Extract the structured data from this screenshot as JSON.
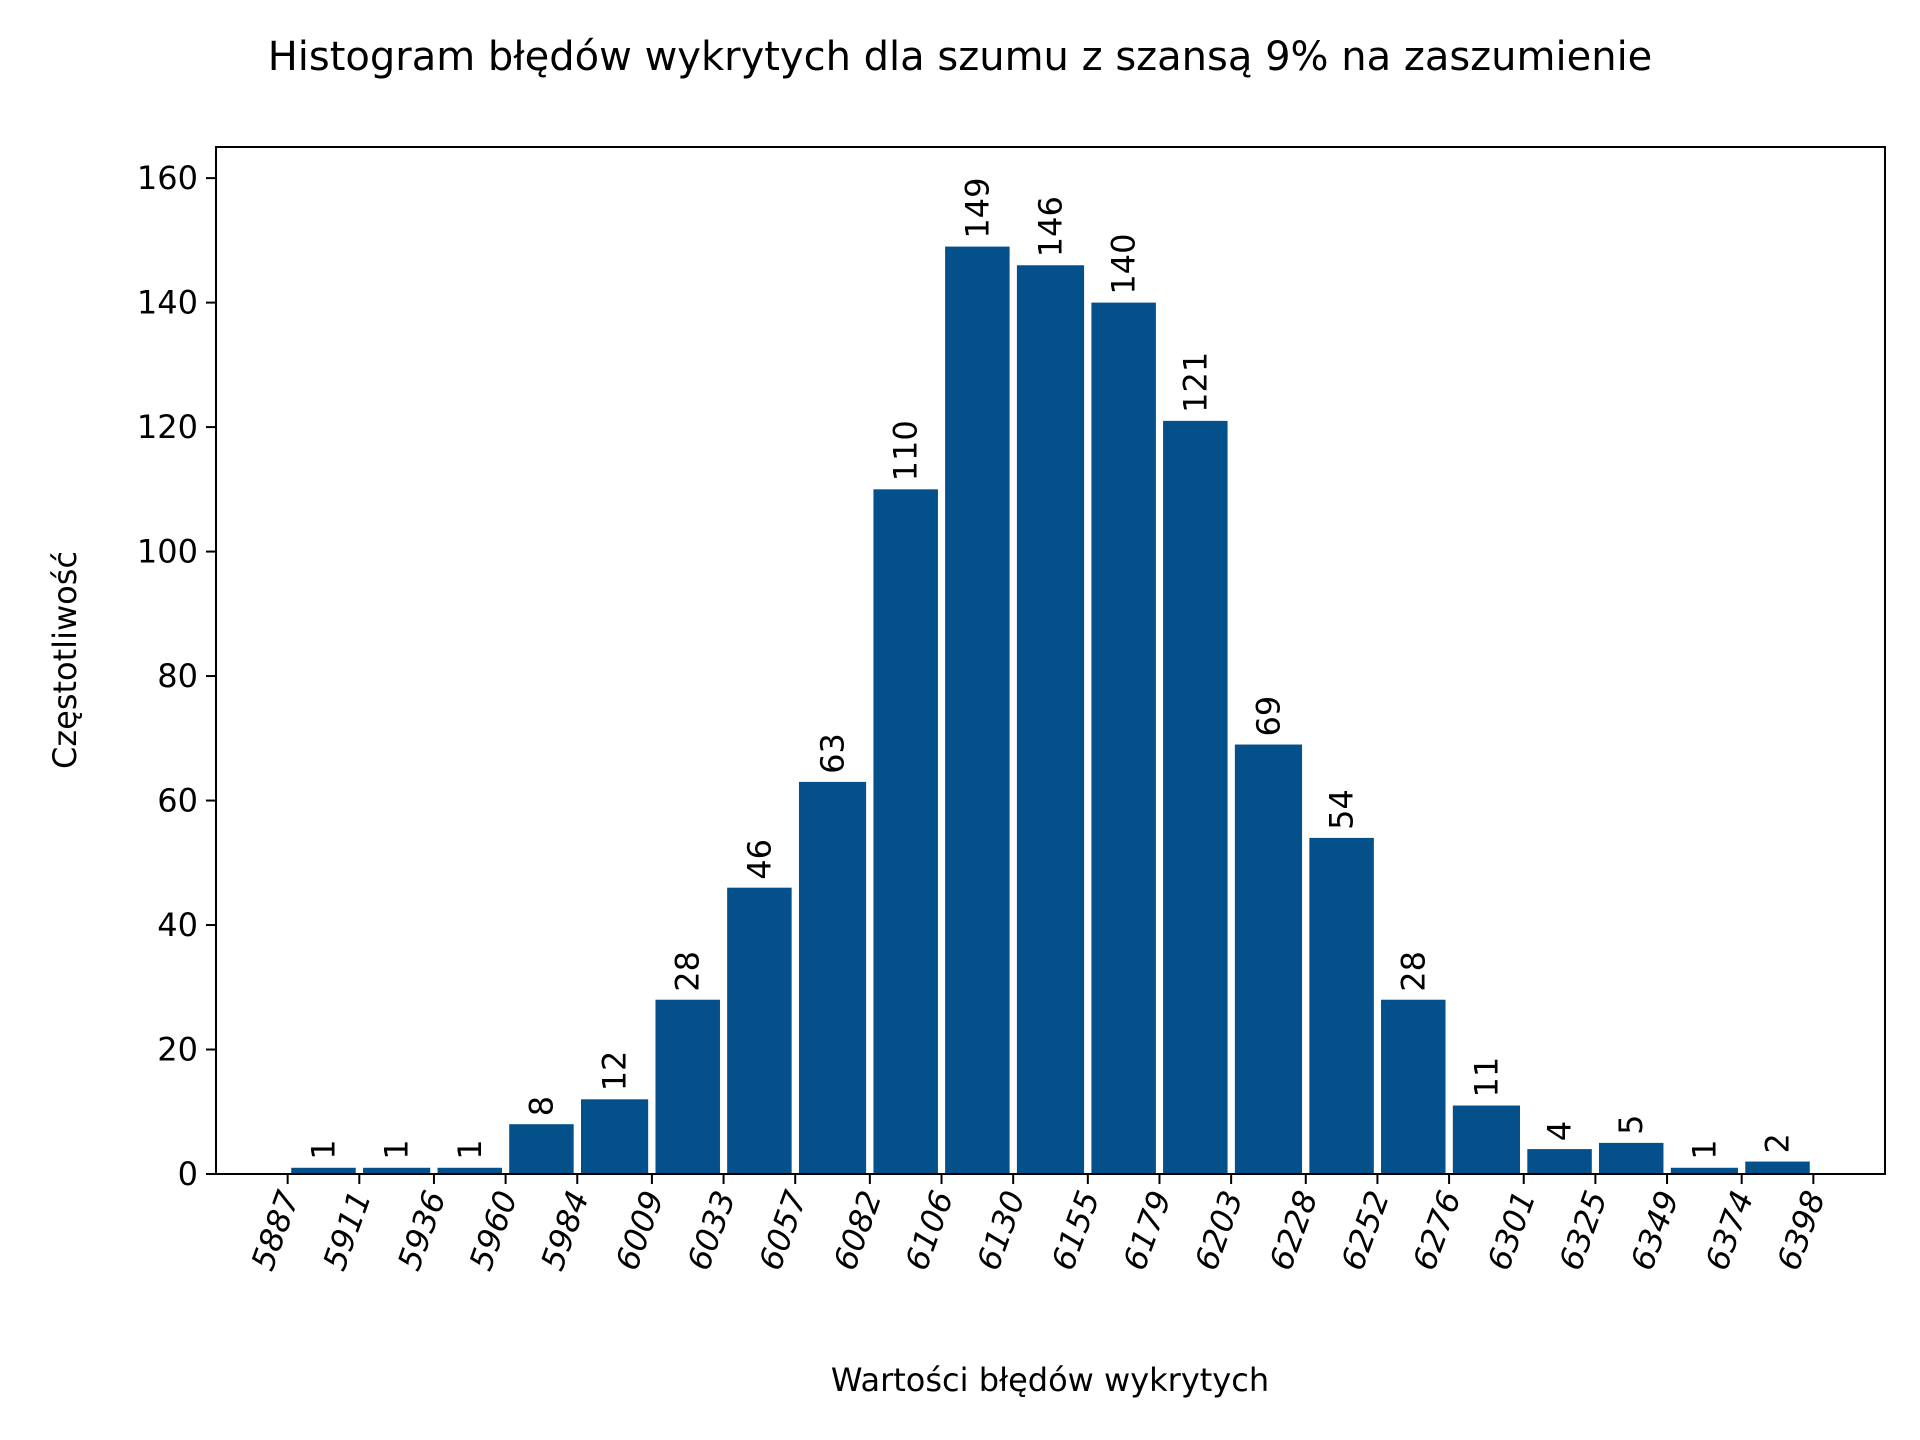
{
  "chart_data": {
    "type": "bar",
    "title": "Histogram błędów wykrytych dla szumu z szansą 9% na zaszumienie",
    "xlabel": "Wartości błędów wykrytych",
    "ylabel": "Częstotliwość",
    "ylim": [
      0,
      165
    ],
    "yticks": [
      0,
      20,
      40,
      60,
      80,
      100,
      120,
      140,
      160
    ],
    "xlim": [
      5863,
      6422
    ],
    "bin_edges": [
      5887,
      5911,
      5936,
      5960,
      5984,
      6009,
      6033,
      6057,
      6082,
      6106,
      6130,
      6155,
      6179,
      6203,
      6228,
      6252,
      6276,
      6301,
      6325,
      6349,
      6374,
      6398
    ],
    "xtick_labels": [
      "5887",
      "5911",
      "5936",
      "5960",
      "5984",
      "6009",
      "6033",
      "6057",
      "6082",
      "6106",
      "6130",
      "6155",
      "6179",
      "6203",
      "6228",
      "6252",
      "6276",
      "6301",
      "6325",
      "6349",
      "6374",
      "6398"
    ],
    "values": [
      1,
      1,
      1,
      8,
      12,
      28,
      46,
      63,
      110,
      149,
      146,
      140,
      121,
      69,
      54,
      28,
      11,
      4,
      5,
      1,
      2
    ],
    "bar_color": "#03508a",
    "grid": false,
    "legend": false
  }
}
